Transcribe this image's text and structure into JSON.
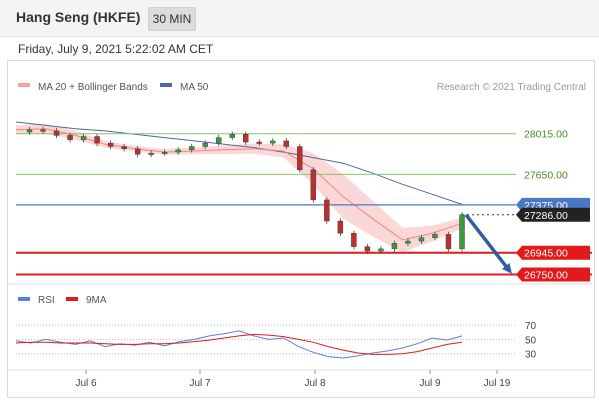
{
  "header": {
    "title": "Hang Seng (HKFE)",
    "timeframe": "30 MIN"
  },
  "datetime": "Friday, July 9, 2021 5:22:02 AM CET",
  "legend": {
    "ma20_bb": "MA 20 + Bollinger Bands",
    "ma50": "MA 50",
    "copyright": "Research © 2021 Trading Central"
  },
  "colors": {
    "support": "#e31a1c",
    "resistance": "#8cc26b",
    "pivot": "#4a78c6",
    "bands": "#f7b6b6",
    "ma50": "#4a6aa0",
    "rsi": "#5b7fd8",
    "rsi_ma": "#e31a1c",
    "arrow": "#2e5e9e"
  },
  "chart_data": [
    {
      "type": "line",
      "title": "",
      "x_ticks": [
        "Jul 6",
        "Jul 7",
        "Jul 8",
        "Jul 9",
        "Jul 19"
      ],
      "ylim": [
        26700,
        28300
      ],
      "levels": [
        {
          "value": 28015.0,
          "label": "28015.00",
          "kind": "resistance"
        },
        {
          "value": 27650.0,
          "label": "27650.00",
          "kind": "resistance"
        },
        {
          "value": 27375.0,
          "label": "27375.00",
          "kind": "pivot"
        },
        {
          "value": 27286.0,
          "label": "27286.00",
          "kind": "last"
        },
        {
          "value": 26945.0,
          "label": "26945.00",
          "kind": "support"
        },
        {
          "value": 26750.0,
          "label": "26750.00",
          "kind": "support"
        }
      ],
      "series": [
        {
          "name": "MA 50",
          "values": [
            28120,
            28090,
            28060,
            28040,
            28010,
            27980,
            27950,
            27920,
            27890,
            27850,
            27800,
            27750,
            27660,
            27560,
            27470,
            27380
          ]
        },
        {
          "name": "MA 20 + Bollinger Bands",
          "values": [
            28050,
            28060,
            28000,
            27920,
            27880,
            27850,
            27860,
            27870,
            27880,
            27860,
            27700,
            27450,
            27250,
            27060,
            27120,
            27210
          ]
        }
      ],
      "price": [
        28030,
        28050,
        28040,
        28000,
        27960,
        27990,
        27930,
        27900,
        27880,
        27830,
        27840,
        27850,
        27870,
        27900,
        27930,
        27980,
        28010,
        27940,
        27930,
        27950,
        27900,
        27690,
        27420,
        27230,
        27120,
        27000,
        26960,
        26980,
        27030,
        27050,
        27080,
        27110,
        26980,
        27286
      ],
      "projection": {
        "from": 27286,
        "to": 26750
      }
    },
    {
      "type": "line",
      "title": "",
      "legend": [
        "RSI",
        "9MA"
      ],
      "ylim": [
        10,
        80
      ],
      "y_ticks": [
        70,
        50,
        30
      ],
      "series": [
        {
          "name": "RSI",
          "values": [
            48,
            45,
            50,
            46,
            43,
            48,
            40,
            44,
            42,
            46,
            41,
            47,
            50,
            55,
            58,
            62,
            55,
            50,
            52,
            40,
            32,
            26,
            24,
            27,
            31,
            34,
            38,
            44,
            52,
            49,
            55
          ]
        },
        {
          "name": "9MA",
          "values": [
            45,
            46,
            46,
            45,
            45,
            45,
            44,
            43,
            43,
            44,
            44,
            45,
            47,
            49,
            52,
            55,
            57,
            56,
            54,
            50,
            46,
            40,
            35,
            31,
            29,
            29,
            30,
            33,
            38,
            43,
            46
          ]
        }
      ]
    }
  ]
}
